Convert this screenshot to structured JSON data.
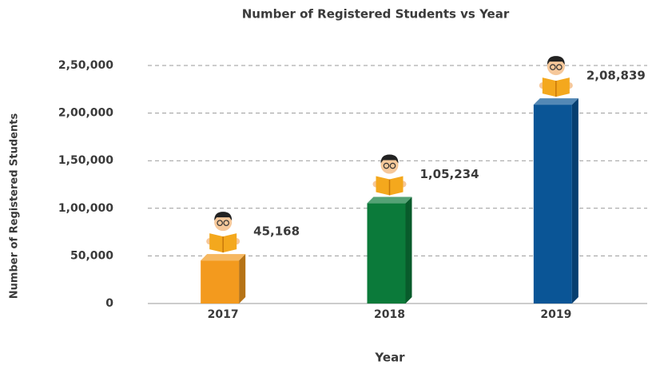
{
  "chart_data": {
    "type": "bar",
    "title": "Number of Registered Students vs Year",
    "x_label": "Year",
    "y_label": "Number of Registered Students",
    "categories": [
      "2017",
      "2018",
      "2019"
    ],
    "values": [
      45168,
      105234,
      208839
    ],
    "value_labels": [
      "45,168",
      "1,05,234",
      "2,08,839"
    ],
    "colors": [
      "#f39a1e",
      "#0b7a3a",
      "#0a5596"
    ],
    "ylim": [
      0,
      250000
    ],
    "yticks": [
      0,
      {
        "value": 50000,
        "label": "50,000"
      },
      {
        "value": 100000,
        "label": "1,00,000"
      },
      {
        "value": 150000,
        "label": "1,50,000"
      },
      {
        "value": 200000,
        "label": "2,00,000"
      },
      {
        "value": 250000,
        "label": "2,50,000"
      }
    ],
    "grid": true
  }
}
